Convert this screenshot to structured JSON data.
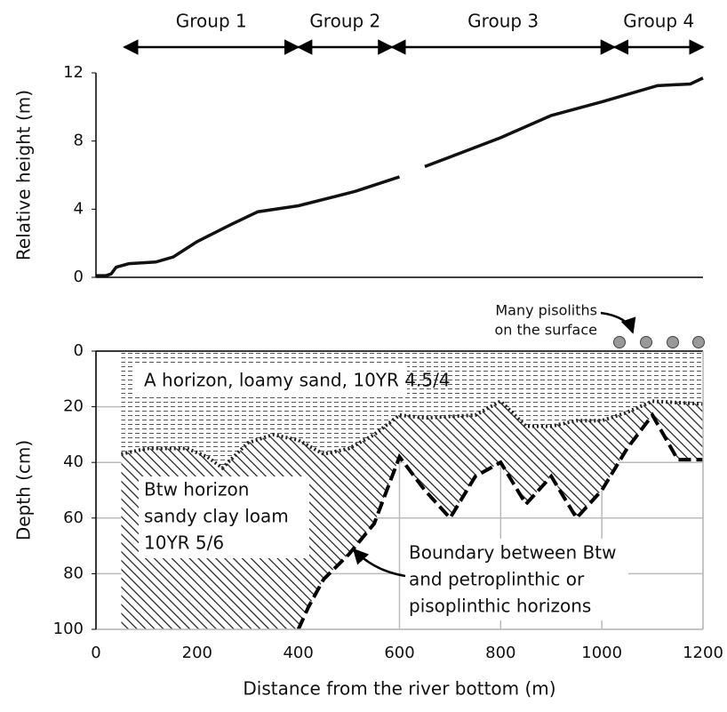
{
  "chart_data": [
    {
      "type": "line",
      "ylabel": "Relative height (m)",
      "xlim": [
        0,
        1200
      ],
      "ylim": [
        0,
        12
      ],
      "yticks": [
        0,
        4,
        8,
        12
      ],
      "color": "#111111",
      "groups": [
        {
          "text": "Group 1",
          "x": [
            56,
            400
          ]
        },
        {
          "text": "Group 2",
          "x": [
            400,
            585
          ]
        },
        {
          "text": "Group 3",
          "x": [
            585,
            1025
          ]
        },
        {
          "text": "Group 4",
          "x": [
            1025,
            1200
          ]
        }
      ],
      "series": [
        {
          "x": [
            0,
            20,
            30,
            40,
            65,
            118,
            153,
            200,
            267,
            320,
            400,
            513,
            600,
            625,
            650,
            800,
            900,
            1000,
            1110,
            1175,
            1200
          ],
          "values": [
            0.1,
            0.1,
            0.2,
            0.6,
            0.8,
            0.9,
            1.2,
            2.1,
            3.1,
            3.85,
            4.2,
            5.05,
            5.9,
            null,
            6.5,
            8.2,
            9.5,
            10.3,
            11.25,
            11.35,
            11.7
          ]
        }
      ]
    },
    {
      "type": "area",
      "ylabel": "Depth (cm)",
      "xlabel": "Distance from the river bottom (m)",
      "xlim": [
        0,
        1200
      ],
      "xticks": [
        0,
        200,
        400,
        600,
        800,
        1000,
        1200
      ],
      "ylim": [
        0,
        100
      ],
      "yticks": [
        0,
        20,
        40,
        60,
        80,
        100
      ],
      "invert_y": true,
      "grid": true,
      "series": [
        {
          "x": [
            50,
            100,
            180,
            220,
            250,
            300,
            350,
            400,
            450,
            500,
            550,
            600,
            650,
            750,
            800,
            850,
            900,
            950,
            1000,
            1050,
            1100,
            1200
          ],
          "values": [
            37,
            35,
            35,
            38,
            42,
            33,
            30,
            32,
            37,
            35,
            30,
            23,
            24,
            23,
            18,
            27,
            27,
            25,
            25,
            22,
            18,
            19
          ]
        },
        {
          "x": [
            400,
            420,
            450,
            500,
            550,
            600,
            650,
            700,
            750,
            800,
            850,
            900,
            950,
            1000,
            1050,
            1100,
            1150,
            1200
          ],
          "values": [
            100,
            92,
            82,
            73,
            62,
            38,
            50,
            60,
            45,
            40,
            55,
            45,
            60,
            50,
            35,
            23,
            39,
            39
          ]
        }
      ],
      "annotations": {
        "a_horizon": "A horizon, loamy sand, 10YR 4.5/4",
        "btw": [
          "Btw horizon",
          "sandy clay loam",
          "10YR 5/6"
        ],
        "boundary": [
          "Boundary between Btw",
          "and petroplinthic or",
          "pisoplinthic horizons"
        ],
        "pisoliths": [
          "Many pisoliths",
          "on the surface"
        ]
      }
    }
  ]
}
